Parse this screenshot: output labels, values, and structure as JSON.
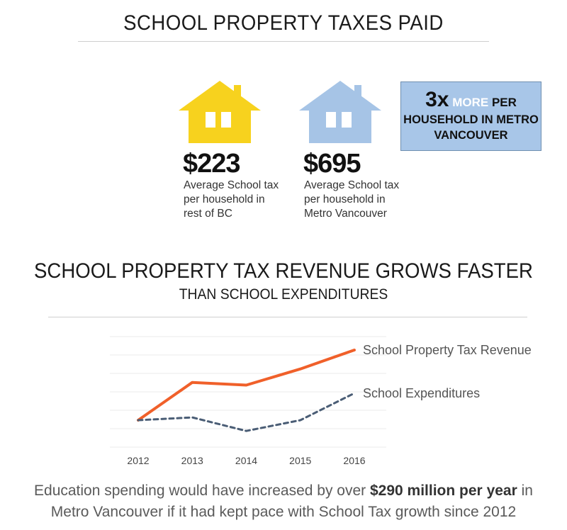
{
  "header": {
    "title": "SCHOOL PROPERTY TAXES PAID"
  },
  "households": [
    {
      "amount": "$223",
      "caption_lines": [
        "Average School tax",
        "per household in",
        "rest of BC"
      ],
      "color": "#f7d21e"
    },
    {
      "amount": "$695",
      "caption_lines": [
        "Average School tax",
        "per household in",
        "Metro Vancouver"
      ],
      "color": "#a6c4e6"
    }
  ],
  "callout": {
    "multiplier": "3x",
    "more": "MORE",
    "per": "PER",
    "line2": "HOUSEHOLD IN METRO",
    "line3": "VANCOUVER",
    "bg_color": "#a8c6e8"
  },
  "chart_section": {
    "title": "SCHOOL PROPERTY TAX REVENUE GROWS FASTER",
    "subtitle": "THAN SCHOOL EXPENDITURES"
  },
  "chart_data": {
    "type": "line",
    "x": [
      "2012",
      "2013",
      "2014",
      "2015",
      "2016"
    ],
    "series": [
      {
        "name": "School Property Tax Revenue",
        "values": [
          100,
          114,
          113,
          119,
          126
        ],
        "color": "#f0602a",
        "style": "solid"
      },
      {
        "name": "School Expenditures",
        "values": [
          100,
          101,
          96,
          100,
          110
        ],
        "color": "#4a5d75",
        "style": "dashed"
      }
    ],
    "ylim": [
      90,
      131
    ],
    "grid": true,
    "legend": "inline-right"
  },
  "footer": {
    "pre": "Education  spending would have increased by over ",
    "bold": "$290 million per year",
    "post": " in",
    "line2": "Metro Vancouver if it had kept pace with School Tax growth since 2012"
  }
}
